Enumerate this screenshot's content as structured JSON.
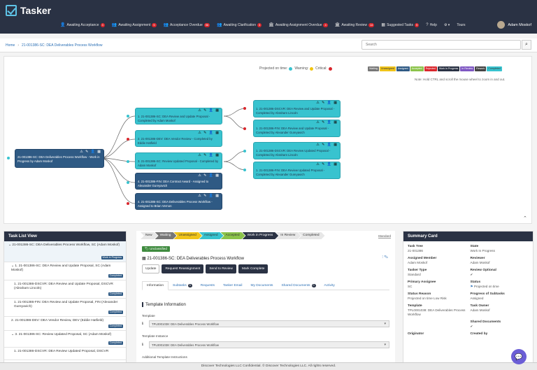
{
  "app": {
    "name": "Tasker"
  },
  "nav": {
    "items": [
      {
        "label": "Awaiting Acceptance",
        "count": "3"
      },
      {
        "label": "Awaiting Assignment",
        "count": "5"
      },
      {
        "label": "Acceptance Overdue",
        "count": "56"
      },
      {
        "label": "Awaiting Clarification",
        "count": "3"
      },
      {
        "label": "Awaiting Assignment Overdue",
        "count": "4"
      },
      {
        "label": "Awaiting Review",
        "count": "14"
      },
      {
        "label": "Suggested Tasks",
        "count": "5"
      }
    ],
    "help": "Help",
    "settings": "⚙ ▾",
    "tours": "Tours",
    "user": "Adam Moskof"
  },
  "breadcrumb": {
    "home": "Home",
    "current": "21-001386-SC: DEA Deliverables Process Workflow"
  },
  "search": {
    "placeholder": "Search"
  },
  "workflow": {
    "legend": {
      "on_time": "Projected on time:",
      "warning": "Warning:",
      "critical": "Critical:"
    },
    "chips": [
      "Waiting",
      "Unassigned",
      "Assigned",
      "Accepted",
      "Rejected",
      "Work in Progress",
      "In Review",
      "Rework",
      "Completed"
    ],
    "note": "Note: Hold CTRL and scroll the mouse wheel to zoom in and out.",
    "root": "21-001386-SC: DEA Deliverables Process Workflow - Work in Progress by Adam Moskof",
    "level1": [
      "1. 21-001386-SC: DEA Review and Update Proposal - Completed by Adam Moskof",
      "2. 21-001386-DEV: DEA Vendor Review - Completed by Eddie Hatfield",
      "3. 21-001386-SC: Review Updated Proposal - Completed by Adam Moskof",
      "4. 21-001386-FIN: DEA Contract Award - Assigned to Alexander Gureyavich",
      "4. 21-001386-SC: DEA Deliverables Process Workflow - Assigned to Brian Vernon"
    ],
    "level2": [
      "1. 21-001386-DSCVR: DEA Review and Update Proposal - Completed by Abraham Lincoln",
      "1. 21-001386-FIN: DEA Review and Update Proposal - Completed by Alexander Gureyavich",
      "1. 21-001386-DSCVR: DEA Review Updated Proposal - Completed by Abraham Lincoln",
      "1. 21-001386-FIN: DEA Review Updated Proposal - Completed by Alexander Gureyavich"
    ],
    "node_icons": "⚠ ✎ 👤 ▦"
  },
  "tasklist": {
    "title": "Task List View",
    "items": [
      {
        "text": "21-001386-SC: DEA Deliverables Process Workflow, SC (Adam Moskof)",
        "status": "Work in Progress"
      },
      {
        "text": "1. 21-001386-SC: DEA Review and Update Proposal, SC (Adam Moskof)",
        "status": "Completed"
      },
      {
        "text": "1. 21-001386-DSCVR: DEA Review and Update Proposal, DSCVR (Abraham Lincoln)",
        "status": "Completed"
      },
      {
        "text": "1. 21-001386-FIN: DEA Review and Update Proposal, FIN (Alexander Gureyavich)",
        "status": "Completed"
      },
      {
        "text": "2. 21-001386-DEV: DEA Vendor Review, DEV (Eddie Hatfield)",
        "status": "Completed"
      },
      {
        "text": "3. 21-001386-SC: Review Updated Proposal, SC (Adam Moskof)",
        "status": "Completed"
      },
      {
        "text": "1. 21-001386-DSCVR: DEA Review Updated Proposal, DSCVR",
        "status": ""
      }
    ]
  },
  "center": {
    "steps": [
      "New",
      "Waiting",
      "Unassigned",
      "Assigned",
      "Accepted",
      "Work in Progress",
      "In Review",
      "Completed"
    ],
    "standard": "Standard",
    "classification": "Unclassified",
    "title": "21-001386-SC: DEA Deliverables Process Workflow",
    "buttons": [
      "Update",
      "Request Reassignment",
      "Send to Review",
      "Mark Complete"
    ],
    "tabs": [
      {
        "label": "Information",
        "count": ""
      },
      {
        "label": "Subtasks",
        "count": "5"
      },
      {
        "label": "Requests",
        "count": ""
      },
      {
        "label": "Tasker Email",
        "count": ""
      },
      {
        "label": "My Documents",
        "count": ""
      },
      {
        "label": "Shared Documents",
        "count": "0"
      },
      {
        "label": "Activity",
        "count": ""
      }
    ],
    "template_info": "Template Information",
    "template_label": "Template",
    "template_value": "TPL0001038: DEA Deliverables Process Workflow",
    "instance_label": "Template Instance",
    "instance_value": "TPL0001038: DEA Deliverables Process Workflow",
    "additional": "Additional Template Instructions"
  },
  "summary": {
    "title": "Summary Card",
    "fields": [
      {
        "k": "Task Tree",
        "v": "21-001386"
      },
      {
        "k": "State",
        "v": "Work In Progress"
      },
      {
        "k": "Assigned Member",
        "v": "Adam Moskof"
      },
      {
        "k": "Reviewer",
        "v": "Adam Moskof"
      },
      {
        "k": "Tasker Type",
        "v": "Standard"
      },
      {
        "k": "Review Optional",
        "v": "✔"
      },
      {
        "k": "Primary Assignee",
        "v": "SC"
      },
      {
        "k": "Status",
        "v": "Projected on time"
      },
      {
        "k": "Status Reason",
        "v": "Projected on time Low Risk"
      },
      {
        "k": "Progress of Subtasks",
        "v": "Assigned"
      },
      {
        "k": "Template",
        "v": "TPL0001038: DEA Deliverables Process Workflow"
      },
      {
        "k": "Task Owner",
        "v": "Adam Moskof"
      },
      {
        "k": "",
        "v": ""
      },
      {
        "k": "Shared Documents",
        "v": "✔"
      },
      {
        "k": "Originator",
        "v": ""
      },
      {
        "k": "Created by",
        "v": ""
      }
    ]
  },
  "footer": "Discover Technologies LLC Confidential. © Discover Technologies LLC. All rights reserved."
}
